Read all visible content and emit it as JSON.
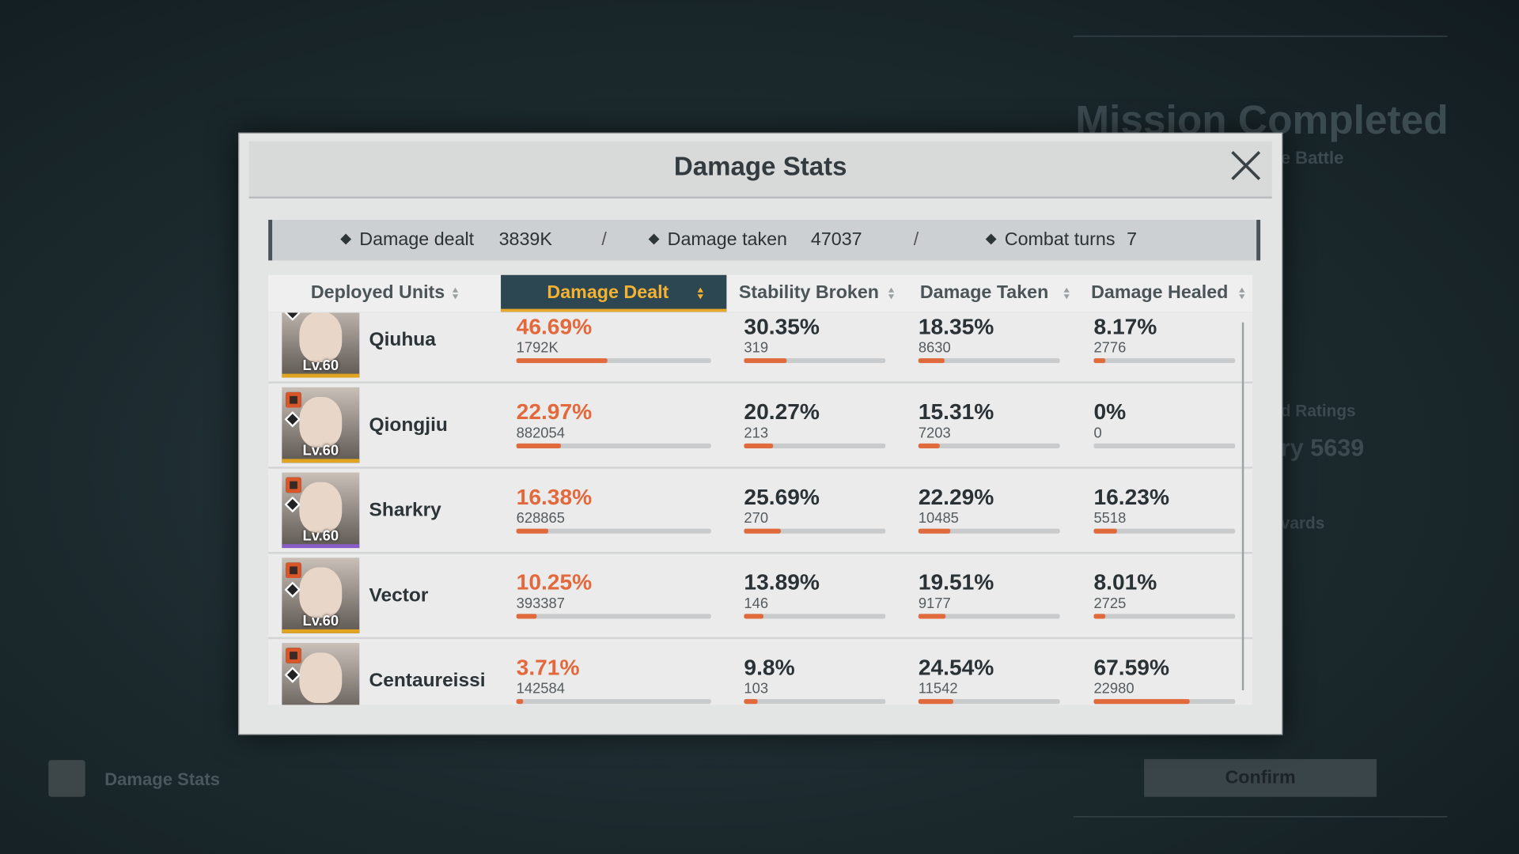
{
  "background": {
    "mission_title": "Mission Completed",
    "subtitle": "e Battle",
    "ratings_label": "d Ratings",
    "rating_value": "ry 5639",
    "rewards_label": "vards",
    "confirm": "Confirm",
    "footer_button": "Damage Stats"
  },
  "modal": {
    "title": "Damage Stats",
    "separator": "/",
    "summary": [
      {
        "label": "Damage dealt",
        "value": "3839K"
      },
      {
        "label": "Damage taken",
        "value": 47037
      },
      {
        "label": "Combat turns",
        "value": 7
      }
    ],
    "columns": [
      "Deployed Units",
      "Damage Dealt",
      "Stability Broken",
      "Damage Taken",
      "Damage Healed"
    ],
    "active_column": 1,
    "rows": [
      {
        "name": "Qiuhua",
        "level": "Lv.60",
        "frame_color": "#e0a420",
        "stats": [
          {
            "pct": {
              "value": 46.69,
              "label": "46.69%"
            },
            "raw": "1792K"
          },
          {
            "pct": {
              "value": 30.35,
              "label": "30.35%"
            },
            "raw": 319
          },
          {
            "pct": {
              "value": 18.35,
              "label": "18.35%"
            },
            "raw": 8630
          },
          {
            "pct": {
              "value": 8.17,
              "label": "8.17%"
            },
            "raw": 2776
          }
        ]
      },
      {
        "name": "Qiongjiu",
        "level": "Lv.60",
        "frame_color": "#e0a420",
        "stats": [
          {
            "pct": {
              "value": 22.97,
              "label": "22.97%"
            },
            "raw": 882054
          },
          {
            "pct": {
              "value": 20.27,
              "label": "20.27%"
            },
            "raw": 213
          },
          {
            "pct": {
              "value": 15.31,
              "label": "15.31%"
            },
            "raw": 7203
          },
          {
            "pct": {
              "value": 0,
              "label": "0%"
            },
            "raw": 0
          }
        ]
      },
      {
        "name": "Sharkry",
        "level": "Lv.60",
        "frame_color": "#8a5cc8",
        "stats": [
          {
            "pct": {
              "value": 16.38,
              "label": "16.38%"
            },
            "raw": 628865
          },
          {
            "pct": {
              "value": 25.69,
              "label": "25.69%"
            },
            "raw": 270
          },
          {
            "pct": {
              "value": 22.29,
              "label": "22.29%"
            },
            "raw": 10485
          },
          {
            "pct": {
              "value": 16.23,
              "label": "16.23%"
            },
            "raw": 5518
          }
        ]
      },
      {
        "name": "Vector",
        "level": "Lv.60",
        "frame_color": "#e0a420",
        "stats": [
          {
            "pct": {
              "value": 10.25,
              "label": "10.25%"
            },
            "raw": 393387
          },
          {
            "pct": {
              "value": 13.89,
              "label": "13.89%"
            },
            "raw": 146
          },
          {
            "pct": {
              "value": 19.51,
              "label": "19.51%"
            },
            "raw": 9177
          },
          {
            "pct": {
              "value": 8.01,
              "label": "8.01%"
            },
            "raw": 2725
          }
        ]
      },
      {
        "name": "Centaureissi",
        "frame_color": "#e0a420",
        "stats": [
          {
            "pct": {
              "value": 3.71,
              "label": "3.71%"
            },
            "raw": 142584
          },
          {
            "pct": {
              "value": 9.8,
              "label": "9.8%"
            },
            "raw": 103
          },
          {
            "pct": {
              "value": 24.54,
              "label": "24.54%"
            },
            "raw": 11542
          },
          {
            "pct": {
              "value": 67.59,
              "label": "67.59%"
            },
            "raw": 22980
          }
        ]
      }
    ]
  }
}
